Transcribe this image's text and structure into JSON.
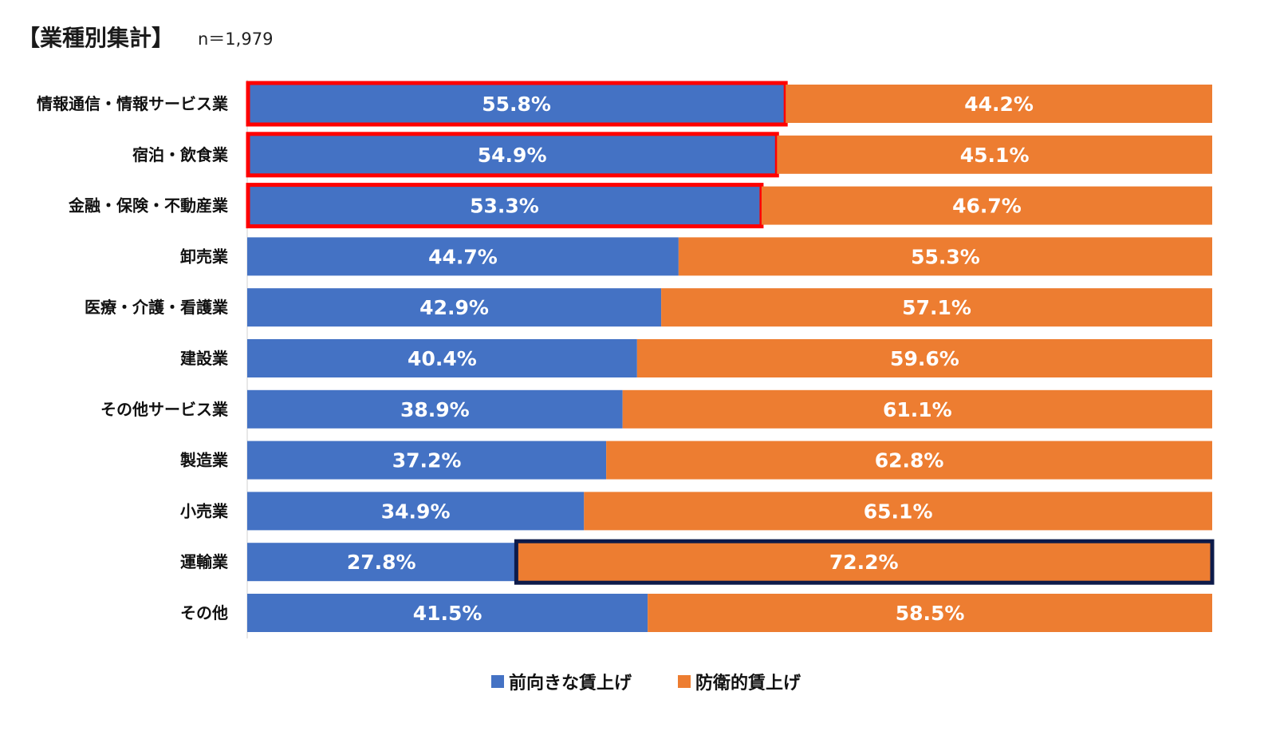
{
  "title": "【業種別集計】",
  "n_label": "n＝1,979",
  "chart_data": {
    "type": "bar",
    "orientation": "horizontal",
    "stacked": true,
    "xlim": [
      0,
      100
    ],
    "grid": false,
    "legend_position": "bottom",
    "categories": [
      "情報通信・情報サービス業",
      "宿泊・飲食業",
      "金融・保険・不動産業",
      "卸売業",
      "医療・介護・看護業",
      "建設業",
      "その他サービス業",
      "製造業",
      "小売業",
      "運輸業",
      "その他"
    ],
    "series": [
      {
        "name": "前向きな賃上げ",
        "color": "#4472c4",
        "values": [
          55.8,
          54.9,
          53.3,
          44.7,
          42.9,
          40.4,
          38.9,
          37.2,
          34.9,
          27.8,
          41.5
        ],
        "labels": [
          "55.8%",
          "54.9%",
          "53.3%",
          "44.7%",
          "42.9%",
          "40.4%",
          "38.9%",
          "37.2%",
          "34.9%",
          "27.8%",
          "41.5%"
        ],
        "highlighted": [
          0,
          1,
          2
        ],
        "highlight_color": "#ff0000"
      },
      {
        "name": "防衛的賃上げ",
        "color": "#ed7d31",
        "values": [
          44.2,
          45.1,
          46.7,
          55.3,
          57.1,
          59.6,
          61.1,
          62.8,
          65.1,
          72.2,
          58.5
        ],
        "labels": [
          "44.2%",
          "45.1%",
          "46.7%",
          "55.3%",
          "57.1%",
          "59.6%",
          "61.1%",
          "62.8%",
          "65.1%",
          "72.2%",
          "58.5%"
        ],
        "highlighted": [
          9
        ],
        "highlight_color": "#0d1b4a"
      }
    ]
  }
}
